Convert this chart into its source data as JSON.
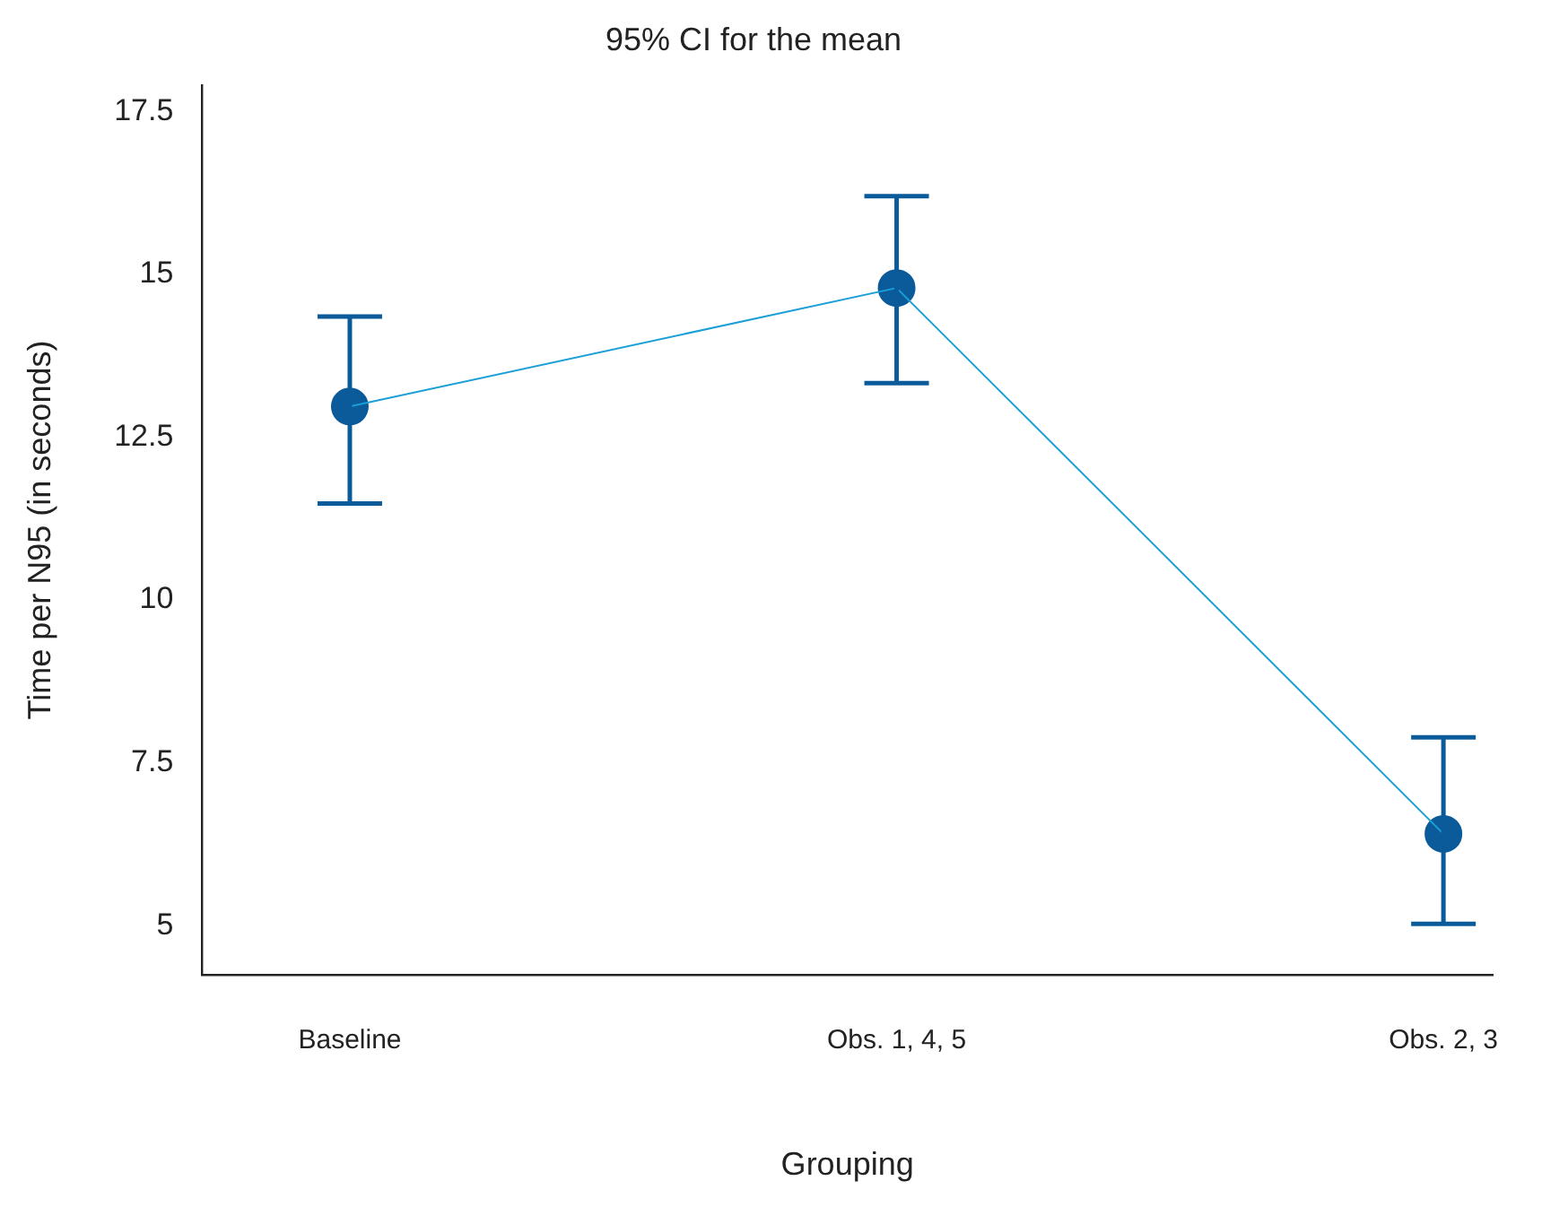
{
  "chart_data": {
    "type": "line",
    "title": "95% CI for the mean",
    "xlabel": "Grouping",
    "ylabel": "Time per N95 (in seconds)",
    "categories": [
      "Baseline",
      "Obs. 1, 4, 5",
      "Obs. 2, 3"
    ],
    "series": [
      {
        "marker": "none",
        "color": "#1a9fd6",
        "values": [
          12.97,
          14.79,
          6.41
        ]
      },
      {
        "type": "scatter",
        "color": "#0b5b9b",
        "colors": [
          "#0b5b9b",
          "#0b5b9b",
          "#0b5b9b"
        ],
        "values": [
          12.97,
          14.79,
          6.41
        ],
        "errors": [
          [
            11.48,
            14.35
          ],
          [
            13.33,
            16.2
          ],
          [
            5.03,
            7.89
          ]
        ]
      }
    ],
    "ylim": [
      4.25,
      17.9
    ],
    "yticks": [
      5,
      7.5,
      10,
      12.5,
      15,
      17.5
    ],
    "grid": false,
    "legend": false,
    "marker": "circle",
    "line_style": "solid"
  }
}
